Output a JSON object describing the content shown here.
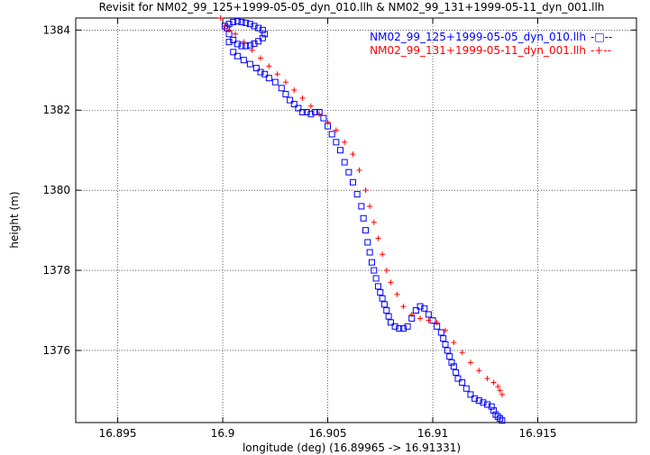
{
  "chart_data": {
    "type": "scatter",
    "title": "Revisit for NM02_99_125+1999-05-05_dyn_010.llh & NM02_99_131+1999-05-11_dyn_001.llh",
    "xlabel": "longitude (deg) (16.89965 -> 16.91331)",
    "ylabel": "height (m)",
    "xlim": [
      16.893,
      16.9197
    ],
    "ylim": [
      1374.2,
      1384.3
    ],
    "x_ticks": [
      16.895,
      16.9,
      16.905,
      16.91,
      16.915
    ],
    "x_tick_labels": [
      "16.895",
      "16.9",
      "16.905",
      "16.91",
      "16.915"
    ],
    "y_ticks": [
      1376,
      1378,
      1380,
      1382,
      1384
    ],
    "y_tick_labels": [
      "1376",
      "1378",
      "1380",
      "1382",
      "1384"
    ],
    "grid": true,
    "legend_position": "top-right",
    "series": [
      {
        "name": "NM02_99_125+1999-05-05_dyn_010.llh",
        "legend_label": "NM02_99_125+1999-05-05_dyn_010.llh",
        "legend_line": "-□--",
        "color": "#0000ff",
        "marker": "square",
        "x": [
          16.9001,
          16.9003,
          16.9005,
          16.9007,
          16.9009,
          16.9011,
          16.9013,
          16.9015,
          16.9017,
          16.9019,
          16.902,
          16.9019,
          16.9017,
          16.9015,
          16.9013,
          16.9011,
          16.9009,
          16.9007,
          16.9005,
          16.9003,
          16.9002,
          16.9003,
          16.9005,
          16.9007,
          16.901,
          16.9013,
          16.9016,
          16.9018,
          16.902,
          16.9022,
          16.9025,
          16.9028,
          16.903,
          16.9032,
          16.9034,
          16.9036,
          16.9038,
          16.904,
          16.9042,
          16.9044,
          16.9046,
          16.9048,
          16.905,
          16.9052,
          16.9054,
          16.9056,
          16.9058,
          16.906,
          16.9062,
          16.9064,
          16.9066,
          16.9067,
          16.9068,
          16.9069,
          16.907,
          16.9071,
          16.9072,
          16.9073,
          16.9074,
          16.9075,
          16.9076,
          16.9077,
          16.9078,
          16.9079,
          16.908,
          16.9082,
          16.9084,
          16.9086,
          16.9088,
          16.909,
          16.9092,
          16.9094,
          16.9096,
          16.9098,
          16.91,
          16.9102,
          16.9104,
          16.9105,
          16.9106,
          16.9107,
          16.9108,
          16.9109,
          16.911,
          16.9111,
          16.9112,
          16.9114,
          16.9116,
          16.9118,
          16.912,
          16.9122,
          16.9124,
          16.9126,
          16.9128,
          16.9129,
          16.913,
          16.9131,
          16.9132,
          16.9133
        ],
        "y": [
          1384.1,
          1384.15,
          1384.2,
          1384.22,
          1384.2,
          1384.18,
          1384.15,
          1384.1,
          1384.05,
          1384.0,
          1383.9,
          1383.8,
          1383.72,
          1383.66,
          1383.62,
          1383.6,
          1383.6,
          1383.65,
          1383.75,
          1383.9,
          1384.05,
          1383.7,
          1383.45,
          1383.35,
          1383.25,
          1383.15,
          1383.05,
          1382.95,
          1382.9,
          1382.8,
          1382.7,
          1382.55,
          1382.4,
          1382.25,
          1382.15,
          1382.05,
          1381.95,
          1381.95,
          1381.9,
          1381.95,
          1381.95,
          1381.8,
          1381.6,
          1381.4,
          1381.2,
          1381.0,
          1380.7,
          1380.45,
          1380.2,
          1379.9,
          1379.6,
          1379.3,
          1379.0,
          1378.7,
          1378.45,
          1378.2,
          1378.0,
          1377.8,
          1377.6,
          1377.45,
          1377.3,
          1377.15,
          1377.0,
          1376.85,
          1376.7,
          1376.6,
          1376.55,
          1376.55,
          1376.6,
          1376.8,
          1377.0,
          1377.1,
          1377.05,
          1376.9,
          1376.75,
          1376.6,
          1376.45,
          1376.3,
          1376.15,
          1376.0,
          1375.85,
          1375.7,
          1375.6,
          1375.45,
          1375.3,
          1375.2,
          1375.05,
          1374.9,
          1374.8,
          1374.75,
          1374.7,
          1374.65,
          1374.6,
          1374.5,
          1374.4,
          1374.35,
          1374.3,
          1374.25
        ]
      },
      {
        "name": "NM02_99_131+1999-05-11_dyn_001.llh",
        "legend_label": "NM02_99_131+1999-05-11_dyn_001.llh",
        "legend_line": "-+--",
        "color": "#ff0000",
        "marker": "plus",
        "x": [
          16.8999,
          16.9001,
          16.9003,
          16.9006,
          16.901,
          16.9014,
          16.9018,
          16.9022,
          16.9026,
          16.903,
          16.9034,
          16.9038,
          16.9042,
          16.9046,
          16.905,
          16.9054,
          16.9058,
          16.9062,
          16.9065,
          16.9068,
          16.907,
          16.9072,
          16.9074,
          16.9076,
          16.9078,
          16.908,
          16.9083,
          16.9086,
          16.909,
          16.9094,
          16.9098,
          16.9102,
          16.9106,
          16.911,
          16.9114,
          16.9118,
          16.9122,
          16.9126,
          16.9129,
          16.9131,
          16.9132,
          16.9133
        ],
        "y": [
          1384.3,
          1384.1,
          1384.0,
          1383.9,
          1383.7,
          1383.5,
          1383.3,
          1383.1,
          1382.9,
          1382.7,
          1382.5,
          1382.3,
          1382.1,
          1381.9,
          1381.7,
          1381.5,
          1381.2,
          1380.9,
          1380.5,
          1380.0,
          1379.6,
          1379.2,
          1378.8,
          1378.4,
          1378.0,
          1377.7,
          1377.4,
          1377.1,
          1376.9,
          1376.8,
          1376.75,
          1376.7,
          1376.5,
          1376.2,
          1375.95,
          1375.7,
          1375.5,
          1375.3,
          1375.2,
          1375.1,
          1375.0,
          1374.9
        ]
      }
    ]
  }
}
